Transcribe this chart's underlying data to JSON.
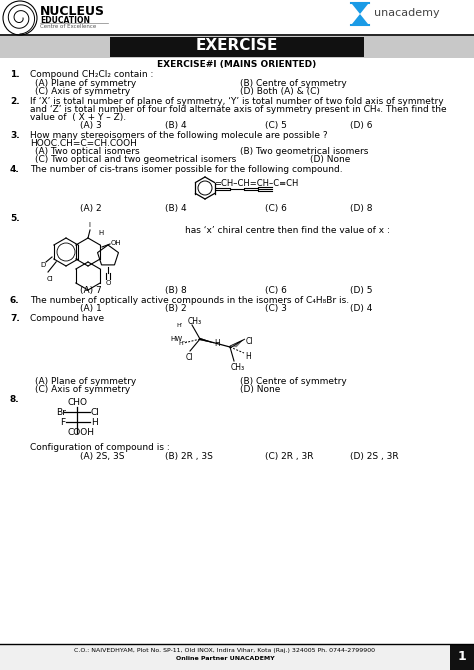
{
  "title": "EXERCISE",
  "subtitle": "EXERCISE#I (MAINS ORIENTED)",
  "bg_color": "#ffffff",
  "footer_line1": "C.O.: NAIVEDHYAM, Plot No. SP-11, Old INOX, Indira Vihar, Kota (Raj.) 324005 Ph. 0744-2799900",
  "footer_line2": "Online Partner UNACADEMY",
  "page_num": "1",
  "q1_text": "Compound CH₂Cl₂ contain :",
  "q1_opts": [
    "(A) Plane of symmetry",
    "(B) Centre of symmetry",
    "(C) Axis of symmetry",
    "(D) Both (A) & (C)"
  ],
  "q2_line1": "If ‘X’ is total number of plane of symmetry, ‘Y’ is total number of two fold axis of symmetry",
  "q2_line2": "and ‘Z’ is total number of four fold alternate axis of symmetry present in CH₄. Then find the",
  "q2_line3": "value of  ( X + Y – Z).",
  "q2_opts": [
    "(A) 3",
    "(B) 4",
    "(C) 5",
    "(D) 6"
  ],
  "q3_line1": "How many stereoisomers of the following molecule are possible ?",
  "q3_line2": "HOOC.CH=C=CH.COOH",
  "q3_opts": [
    "(A) Two optical isomers",
    "(B) Two geometrical isomers",
    "(C) Two optical and two geometrical isomers",
    "(D) None"
  ],
  "q4_text": "The number of cis-trans isomer possible for the following compound.",
  "q4_opts": [
    "(A) 2",
    "(B) 4",
    "(C) 6",
    "(D) 8"
  ],
  "q5_text": "has ‘x’ chiral centre then find the value of x :",
  "q5_opts": [
    "(A) 7",
    "(B) 8",
    "(C) 6",
    "(D) 5"
  ],
  "q6_text": "The number of optically active compounds in the isomers of C₄H₈Br is.",
  "q6_opts": [
    "(A) 1",
    "(B) 2",
    "(C) 3",
    "(D) 4"
  ],
  "q7_text": "Compound have",
  "q7_opts": [
    "(A) Plane of symmetry",
    "(B) Centre of symmetry",
    "(C) Axis of symmetry",
    "(D) None"
  ],
  "q8_opts_label": "Configuration of compound is :",
  "q8_opts": [
    "(A) 2S, 3S",
    "(B) 2R , 3S",
    "(C) 2R , 3R",
    "(D) 2S , 3R"
  ]
}
